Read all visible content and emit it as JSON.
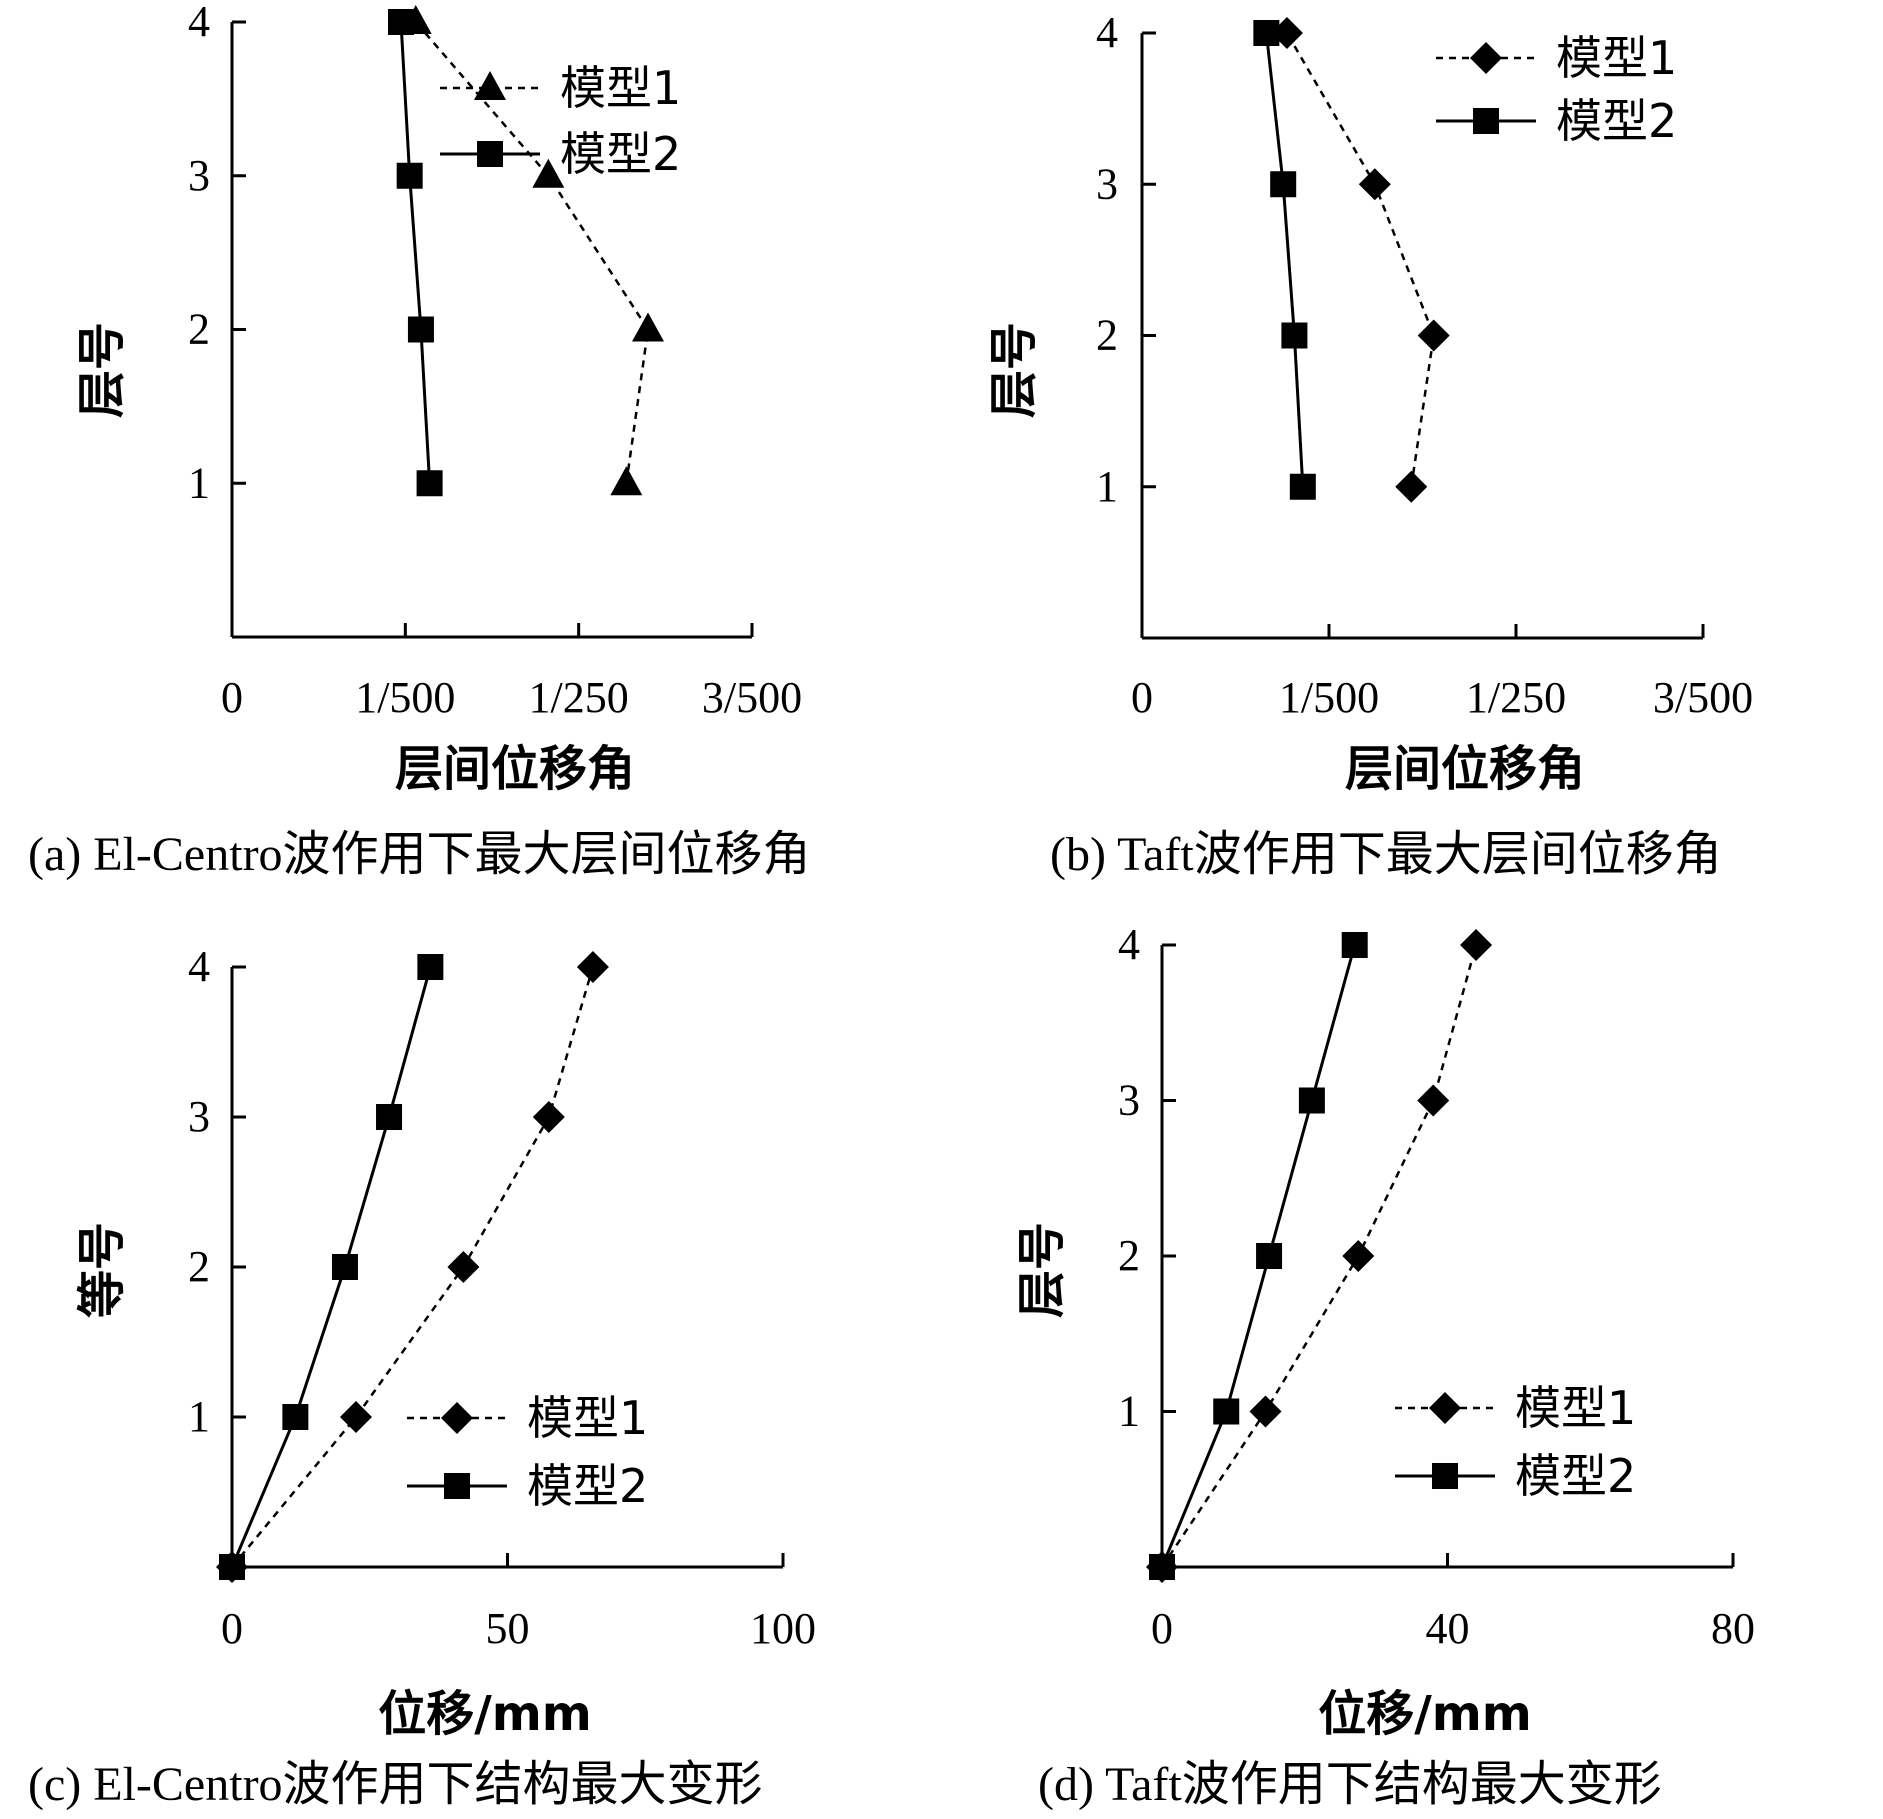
{
  "chart_data": [
    {
      "id": "a",
      "type": "line",
      "caption": "(a) El-Centro波作用下最大层间位移角",
      "xlabel": "层间位移角",
      "ylabel": "层号",
      "xlim": [
        0,
        0.006
      ],
      "ylim": [
        0,
        4
      ],
      "xticks": [
        0,
        0.002,
        0.004,
        0.006
      ],
      "xtick_labels": [
        "0",
        "1/500",
        "1/250",
        "3/500"
      ],
      "yticks": [
        1,
        2,
        3,
        4
      ],
      "ytick_labels": [
        "1",
        "2",
        "3",
        "4"
      ],
      "legend_position": "top-right",
      "series": [
        {
          "name": "模型1",
          "line": "dashed",
          "marker": "triangle",
          "x": [
            0.00455,
            0.0048,
            0.00365,
            0.00212
          ],
          "y": [
            1,
            2,
            3,
            4
          ]
        },
        {
          "name": "模型2",
          "line": "solid",
          "marker": "square",
          "x": [
            0.00228,
            0.00218,
            0.00205,
            0.00195
          ],
          "y": [
            1,
            2,
            3,
            4
          ]
        }
      ]
    },
    {
      "id": "b",
      "type": "line",
      "caption": "(b) Taft波作用下最大层间位移角",
      "xlabel": "层间位移角",
      "ylabel": "层号",
      "xlim": [
        0,
        0.006
      ],
      "ylim": [
        0,
        4
      ],
      "xticks": [
        0,
        0.002,
        0.004,
        0.006
      ],
      "xtick_labels": [
        "0",
        "1/500",
        "1/250",
        "3/500"
      ],
      "yticks": [
        1,
        2,
        3,
        4
      ],
      "ytick_labels": [
        "1",
        "2",
        "3",
        "4"
      ],
      "legend_position": "top-right",
      "series": [
        {
          "name": "模型1",
          "line": "dashed",
          "marker": "diamond",
          "x": [
            0.00288,
            0.00312,
            0.00249,
            0.00155
          ],
          "y": [
            1,
            2,
            3,
            4
          ]
        },
        {
          "name": "模型2",
          "line": "solid",
          "marker": "square",
          "x": [
            0.00172,
            0.00163,
            0.00151,
            0.00133
          ],
          "y": [
            1,
            2,
            3,
            4
          ]
        }
      ]
    },
    {
      "id": "c",
      "type": "line",
      "caption": "(c) El-Centro波作用下结构最大变形",
      "xlabel": "位移/mm",
      "ylabel": "等号",
      "xlim": [
        0,
        100
      ],
      "ylim": [
        0,
        4
      ],
      "xticks": [
        0,
        50,
        100
      ],
      "xtick_labels": [
        "0",
        "50",
        "100"
      ],
      "yticks": [
        1,
        2,
        3,
        4
      ],
      "ytick_labels": [
        "1",
        "2",
        "3",
        "4"
      ],
      "legend_position": "bottom-right",
      "series": [
        {
          "name": "模型1",
          "line": "dashed",
          "marker": "diamond",
          "x": [
            0,
            22.5,
            42,
            57.5,
            65.5
          ],
          "y": [
            0,
            1,
            2,
            3,
            4
          ]
        },
        {
          "name": "模型2",
          "line": "solid",
          "marker": "square",
          "x": [
            0,
            11.5,
            20.5,
            28.5,
            36
          ],
          "y": [
            0,
            1,
            2,
            3,
            4
          ]
        }
      ]
    },
    {
      "id": "d",
      "type": "line",
      "caption": "(d) Taft波作用下结构最大变形",
      "xlabel": "位移/mm",
      "ylabel": "层号",
      "xlim": [
        0,
        80
      ],
      "ylim": [
        0,
        4
      ],
      "xticks": [
        0,
        40,
        80
      ],
      "xtick_labels": [
        "0",
        "40",
        "80"
      ],
      "yticks": [
        1,
        2,
        3,
        4
      ],
      "ytick_labels": [
        "1",
        "2",
        "3",
        "4"
      ],
      "legend_position": "bottom-right",
      "series": [
        {
          "name": "模型1",
          "line": "dashed",
          "marker": "diamond",
          "x": [
            0,
            14.5,
            27.5,
            38,
            44
          ],
          "y": [
            0,
            1,
            2,
            3,
            4
          ]
        },
        {
          "name": "模型2",
          "line": "solid",
          "marker": "square",
          "x": [
            0,
            9,
            15,
            21,
            27
          ],
          "y": [
            0,
            1,
            2,
            3,
            4
          ]
        }
      ]
    }
  ]
}
